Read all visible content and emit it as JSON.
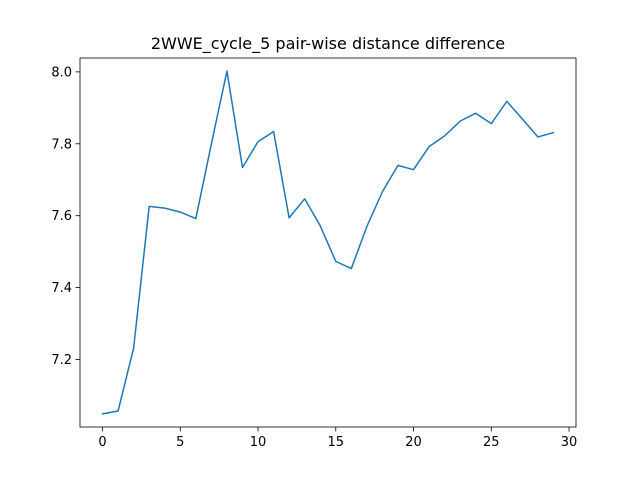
{
  "chart_data": {
    "type": "line",
    "title": "2WWE_cycle_5 pair-wise distance difference",
    "xlabel": "",
    "ylabel": "",
    "xlim": [
      -1.45,
      30.45
    ],
    "ylim": [
      7.0124,
      8.0386
    ],
    "xticks": [
      0,
      5,
      10,
      15,
      20,
      25,
      30
    ],
    "yticks": [
      7.2,
      7.4,
      7.6,
      7.8,
      8.0
    ],
    "xtick_labels": [
      "0",
      "5",
      "10",
      "15",
      "20",
      "25",
      "30"
    ],
    "ytick_labels": [
      "7.2",
      "7.4",
      "7.6",
      "7.8",
      "8.0"
    ],
    "grid": false,
    "series": [
      {
        "color": "#1f77b4",
        "x": [
          0,
          1,
          2,
          3,
          4,
          5,
          6,
          7,
          8,
          9,
          10,
          11,
          12,
          13,
          14,
          15,
          16,
          17,
          18,
          19,
          20,
          21,
          22,
          23,
          24,
          25,
          26,
          27,
          28,
          29
        ],
        "values": [
          7.049,
          7.057,
          7.232,
          7.626,
          7.621,
          7.61,
          7.592,
          7.8,
          8.002,
          7.734,
          7.806,
          7.834,
          7.594,
          7.647,
          7.572,
          7.473,
          7.453,
          7.57,
          7.667,
          7.74,
          7.728,
          7.792,
          7.822,
          7.863,
          7.885,
          7.856,
          7.918,
          7.869,
          7.819,
          7.831
        ]
      }
    ]
  }
}
